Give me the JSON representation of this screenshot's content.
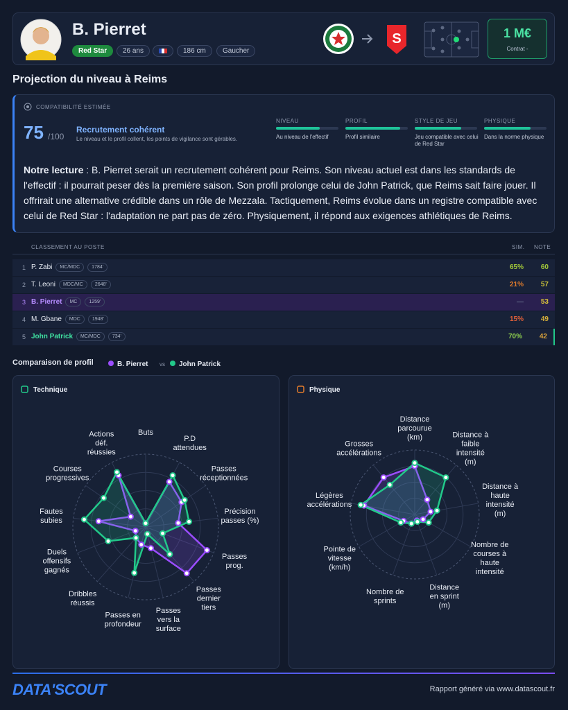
{
  "header": {
    "name": "B. Pierret",
    "club": "Red Star",
    "age": "26 ans",
    "height": "186 cm",
    "foot": "Gaucher",
    "fee": "1 M€",
    "fee_label": "Contrat -"
  },
  "section_title": "Projection du niveau à Reims",
  "compat": {
    "label": "COMPATIBILITÉ ESTIMÉE",
    "score": "75",
    "score_max": "/100",
    "verdict": "Recrutement cohérent",
    "verdict_desc": "Le niveau et le profil collent, les points de vigilance sont gérables.",
    "criteria_lim": [
      0,
      100
    ],
    "criteria": [
      {
        "label": "NIVEAU",
        "text": "Au niveau de l'effectif",
        "value": 70
      },
      {
        "label": "PROFIL",
        "text": "Profil similaire",
        "value": 88
      },
      {
        "label": "STYLE DE JEU",
        "text": "Jeu compatible avec celui de Red Star",
        "value": 74
      },
      {
        "label": "PHYSIQUE",
        "text": "Dans la norme physique",
        "value": 74
      }
    ]
  },
  "reading": {
    "lead": "Notre lecture",
    "text": " : B. Pierret serait un recrutement cohérent pour Reims. Son niveau actuel est dans les standards de l'effectif : il pourrait peser dès la première saison. Son profil prolonge celui de John Patrick, que Reims sait faire jouer. Il offrirait une alternative crédible dans un rôle de Mezzala. Tactiquement, Reims évolue dans un registre compatible avec celui de Red Star : l'adaptation ne part pas de zéro. Physiquement, il répond aux exigences athlétiques de Reims."
  },
  "ranking": {
    "title": "CLASSEMENT AU POSTE",
    "columns": [
      "SIM.",
      "NOTE"
    ],
    "rows": [
      [
        "1",
        "P. Zabi",
        "MC/MDC",
        "1784'",
        "65%",
        "60"
      ],
      [
        "2",
        "T. Leoni",
        "MDC/MC",
        "2648'",
        "21%",
        "57"
      ],
      [
        "3",
        "B. Pierret",
        "MC",
        "1259'",
        "—",
        "53"
      ],
      [
        "4",
        "M. Gbane",
        "MDC",
        "1948'",
        "15%",
        "49"
      ],
      [
        "5",
        "John Patrick",
        "MC/MDC",
        "734'",
        "70%",
        "42"
      ]
    ]
  },
  "comparison": {
    "title": "Comparaison de profil",
    "vs": "vs"
  },
  "chart_data": [
    {
      "type": "radar",
      "title": "Technique",
      "rlim": [
        0,
        100
      ],
      "rticks": [
        25,
        50,
        75,
        100
      ],
      "categories": [
        "Buts",
        "P.D attendues",
        "Passes réceptionnées",
        "Précision passes (%)",
        "Passes prog.",
        "Passes dernier tiers",
        "Passes vers la surface",
        "Passes en profondeur",
        "Dribbles réussis",
        "Duels offensifs gagnés",
        "Fautes subies",
        "Courses progressives",
        "Actions déf. réussies"
      ],
      "series": [
        {
          "name": "B. Pierret",
          "color": "#9b4dff",
          "values": [
            5,
            70,
            60,
            45,
            90,
            85,
            30,
            25,
            20,
            15,
            65,
            25,
            80
          ]
        },
        {
          "name": "John Patrick",
          "color": "#22c98a",
          "values": [
            5,
            80,
            65,
            60,
            25,
            50,
            10,
            65,
            20,
            55,
            85,
            70,
            85
          ]
        }
      ]
    },
    {
      "type": "radar",
      "title": "Physique",
      "rlim": [
        0,
        100
      ],
      "rticks": [
        25,
        50,
        75,
        100
      ],
      "categories": [
        "Distance parcourue (km)",
        "Distance à faible intensité (m)",
        "Distance à haute intensité (m)",
        "Nombre de courses à haute intensité",
        "Distance en sprint (m)",
        "Nombre de sprints",
        "Pointe de vitesse (km/h)",
        "Légères accélérations",
        "Grosses accélérations"
      ],
      "series": [
        {
          "color": "#9b4dff",
          "values": [
            75,
            30,
            25,
            15,
            10,
            15,
            20,
            80,
            75
          ]
        },
        {
          "color": "#22c98a",
          "values": [
            80,
            75,
            35,
            25,
            12,
            15,
            25,
            85,
            60
          ]
        }
      ]
    }
  ],
  "footer": {
    "logo": "DATA'SCOUT",
    "note": "Rapport généré via www.datascout.fr"
  }
}
